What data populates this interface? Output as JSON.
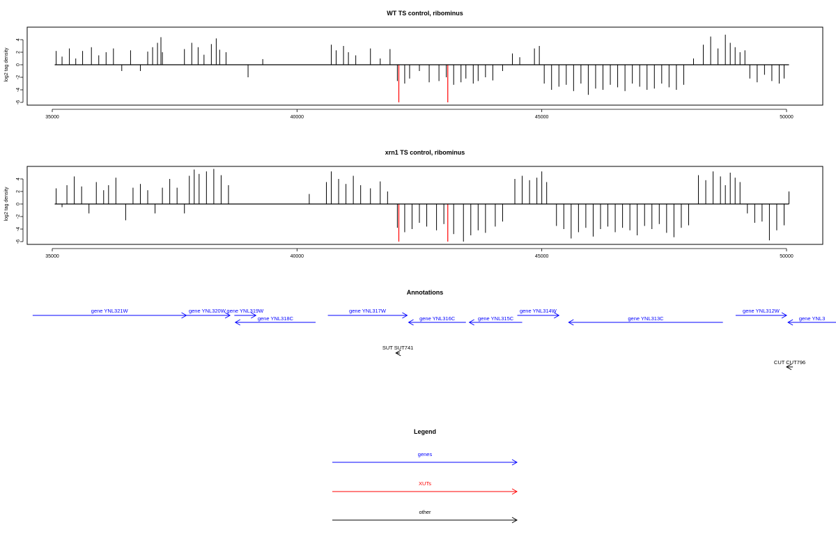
{
  "chart_data": [
    {
      "type": "bar",
      "title": "WT TS control, ribominus",
      "xlabel": "",
      "ylabel": "log2 tag density",
      "xlim": [
        35000,
        50000
      ],
      "ylim": [
        -6,
        5
      ],
      "xticks": [
        35000,
        40000,
        45000,
        50000
      ],
      "xtick_labels": [
        "35000",
        "40000",
        "45000",
        "50000"
      ],
      "yticks": [
        -6,
        -4,
        -2,
        0,
        2,
        4
      ],
      "ytick_labels": [
        "-6",
        "-4",
        "-2",
        "0",
        "2",
        "4"
      ],
      "grid": false,
      "series": [
        {
          "color": "#000000",
          "x": [
            35080,
            35200,
            35350,
            35480,
            35620,
            35800,
            35950,
            36100,
            36250,
            36420,
            36600,
            36800,
            36950,
            37050,
            37150,
            37220,
            37250,
            37700,
            37850,
            37980,
            38100,
            38250,
            38350,
            38420,
            38550,
            39000,
            39300,
            40700,
            40800,
            40950,
            41050,
            41200,
            41500,
            41700,
            41900,
            42050,
            42200,
            42300,
            42500,
            42700,
            42900,
            43050,
            43200,
            43350,
            43450,
            43600,
            43700,
            43850,
            44000,
            44200,
            44400,
            44550,
            44850,
            44950,
            45050,
            45200,
            45350,
            45500,
            45650,
            45800,
            45950,
            46100,
            46250,
            46400,
            46550,
            46700,
            46850,
            47000,
            47150,
            47300,
            47450,
            47600,
            47750,
            47900,
            48100,
            48300,
            48450,
            48600,
            48750,
            48850,
            48950,
            49050,
            49150,
            49250,
            49400,
            49550,
            49700,
            49850,
            49950
          ],
          "values": [
            2.2,
            1.3,
            2.6,
            1.0,
            2.2,
            2.8,
            1.5,
            2.0,
            2.6,
            -1.0,
            2.3,
            -1.0,
            2.1,
            2.8,
            3.5,
            4.4,
            2.0,
            2.5,
            3.5,
            2.8,
            1.6,
            3.3,
            4.2,
            2.4,
            2.0,
            -2.0,
            0.9,
            3.2,
            2.3,
            3.0,
            2.0,
            1.5,
            2.6,
            1.0,
            2.5,
            -2.6,
            -3.0,
            -2.2,
            -1.0,
            -2.8,
            -2.6,
            -2.0,
            -3.2,
            -2.8,
            -2.2,
            -3.0,
            -2.6,
            -2.0,
            -2.5,
            -1.0,
            1.8,
            1.2,
            2.6,
            3.0,
            -3.0,
            -4.0,
            -3.5,
            -3.2,
            -4.2,
            -3.0,
            -4.8,
            -3.8,
            -4.0,
            -3.2,
            -3.6,
            -4.2,
            -3.0,
            -3.5,
            -4.0,
            -3.8,
            -3.0,
            -3.6,
            -4.0,
            -3.2,
            1.0,
            3.2,
            4.5,
            2.6,
            4.8,
            3.5,
            2.8,
            2.0,
            2.3,
            -2.2,
            -2.8,
            -1.6,
            -2.6,
            -3.0,
            -2.2
          ]
        },
        {
          "color": "#ff0000",
          "x": [
            42080,
            43080
          ],
          "values": [
            -6,
            -6
          ]
        }
      ]
    },
    {
      "type": "bar",
      "title": "xrn1 TS control, ribominus",
      "xlabel": "",
      "ylabel": "log2 tag density",
      "xlim": [
        35000,
        50000
      ],
      "ylim": [
        -6,
        5
      ],
      "xticks": [
        35000,
        40000,
        45000,
        50000
      ],
      "xtick_labels": [
        "35000",
        "40000",
        "45000",
        "50000"
      ],
      "yticks": [
        -6,
        -4,
        -2,
        0,
        2,
        4
      ],
      "ytick_labels": [
        "-6",
        "-4",
        "-2",
        "0",
        "2",
        "4"
      ],
      "grid": false,
      "series": [
        {
          "color": "#000000",
          "x": [
            35080,
            35200,
            35300,
            35450,
            35600,
            35750,
            35900,
            36050,
            36150,
            36300,
            36500,
            36650,
            36800,
            36950,
            37100,
            37250,
            37400,
            37550,
            37700,
            37800,
            37900,
            38000,
            38150,
            38300,
            38450,
            38600,
            40250,
            40600,
            40700,
            40850,
            41000,
            41150,
            41300,
            41500,
            41700,
            41850,
            42050,
            42200,
            42350,
            42500,
            42650,
            42850,
            43000,
            43200,
            43400,
            43550,
            43700,
            43850,
            44050,
            44200,
            44450,
            44600,
            44750,
            44900,
            45000,
            45100,
            45300,
            45450,
            45600,
            45750,
            45900,
            46050,
            46200,
            46350,
            46500,
            46650,
            46800,
            46950,
            47100,
            47250,
            47400,
            47550,
            47700,
            47850,
            48000,
            48200,
            48350,
            48500,
            48650,
            48750,
            48850,
            48950,
            49050,
            49200,
            49350,
            49500,
            49650,
            49800,
            49950,
            50050
          ],
          "values": [
            2.5,
            -0.5,
            3.0,
            4.4,
            2.8,
            -1.5,
            3.5,
            2.2,
            3.0,
            4.2,
            -2.6,
            2.6,
            3.2,
            2.2,
            -1.5,
            2.6,
            4.0,
            2.6,
            -1.5,
            4.5,
            5.5,
            4.8,
            5.2,
            5.6,
            4.6,
            3.0,
            1.6,
            3.5,
            5.2,
            4.0,
            3.2,
            4.5,
            3.0,
            2.5,
            3.6,
            2.0,
            -3.8,
            -4.5,
            -4.0,
            -3.0,
            -3.6,
            -4.2,
            -3.2,
            -4.8,
            -6.0,
            -5.0,
            -4.2,
            -4.6,
            -3.6,
            -2.8,
            4.0,
            4.5,
            3.8,
            4.2,
            5.2,
            3.5,
            -3.5,
            -4.0,
            -5.5,
            -4.5,
            -3.8,
            -5.2,
            -4.0,
            -3.6,
            -4.5,
            -3.8,
            -4.2,
            -5.0,
            -3.5,
            -4.0,
            -3.2,
            -4.6,
            -5.3,
            -3.8,
            -3.4,
            4.6,
            3.8,
            5.2,
            4.4,
            3.0,
            5.0,
            4.2,
            3.5,
            -1.5,
            -3.0,
            -2.8,
            -5.8,
            -4.2,
            -3.4,
            2.0
          ]
        },
        {
          "color": "#ff0000",
          "x": [
            42080,
            43080
          ],
          "values": [
            -6,
            -6
          ]
        }
      ]
    }
  ],
  "annotations": {
    "title": "Annotations",
    "features": [
      {
        "label": "gene YNL321W",
        "start": 34600,
        "end": 37740,
        "strand": "+",
        "color": "#0000ff",
        "track": 0
      },
      {
        "label": "gene YNL320W",
        "start": 37700,
        "end": 38630,
        "strand": "+",
        "color": "#0000ff",
        "track": 0
      },
      {
        "label": "gene YNL319W",
        "start": 38720,
        "end": 39160,
        "strand": "+",
        "color": "#0000ff",
        "track": 0
      },
      {
        "label": "gene YNL318C",
        "start": 38740,
        "end": 40380,
        "strand": "-",
        "color": "#0000ff",
        "track": 1
      },
      {
        "label": "gene YNL317W",
        "start": 40630,
        "end": 42250,
        "strand": "+",
        "color": "#0000ff",
        "track": 0
      },
      {
        "label": "gene YNL316C",
        "start": 42280,
        "end": 43450,
        "strand": "-",
        "color": "#0000ff",
        "track": 1
      },
      {
        "label": "gene YNL315C",
        "start": 43520,
        "end": 44600,
        "strand": "-",
        "color": "#0000ff",
        "track": 1
      },
      {
        "label": "gene YNL314W",
        "start": 44500,
        "end": 45350,
        "strand": "+",
        "color": "#0000ff",
        "track": 0
      },
      {
        "label": "gene YNL313C",
        "start": 45550,
        "end": 48700,
        "strand": "-",
        "color": "#0000ff",
        "track": 1
      },
      {
        "label": "gene YNL312W",
        "start": 48960,
        "end": 50000,
        "strand": "+",
        "color": "#0000ff",
        "track": 0
      },
      {
        "label": "gene YNL3",
        "start": 50030,
        "end": 51700,
        "strand": "-",
        "color": "#0000ff",
        "track": 1
      },
      {
        "label": "SUT SUT741",
        "start": 42020,
        "end": 42100,
        "strand": "-",
        "color": "#000000",
        "track": 2
      },
      {
        "label": "CUT CUT796",
        "start": 50000,
        "end": 50130,
        "strand": "-",
        "color": "#000000",
        "track": 3
      }
    ]
  },
  "legend": {
    "title": "Legend",
    "items": [
      {
        "label": "genes",
        "color": "#0000ff"
      },
      {
        "label": "XUTs",
        "color": "#ff0000"
      },
      {
        "label": "other",
        "color": "#000000"
      }
    ]
  }
}
